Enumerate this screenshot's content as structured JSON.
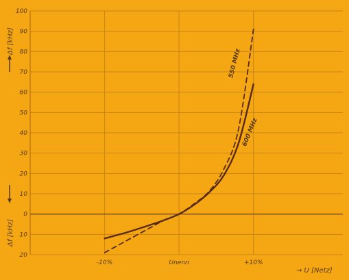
{
  "chart_data": {
    "type": "line",
    "x_ticks": [
      "-10%",
      "Unenn",
      "+10%"
    ],
    "x_values": [
      -10,
      0,
      10
    ],
    "xlabel": "→ U [Netz]",
    "ylabel_top": "Δf [kHz]",
    "ylabel_bottom": "Δf [kHz]",
    "y_ticks_top": [
      "100",
      "90",
      "80",
      "70",
      "60",
      "50",
      "40",
      "30",
      "20",
      "10",
      "0"
    ],
    "y_ticks_bottom": [
      "10",
      "20"
    ],
    "ylim": [
      -20,
      100
    ],
    "grid": true,
    "series": [
      {
        "name": "550 MHz",
        "style": "dashed",
        "color": "#5a2a1a",
        "points": [
          [
            -10,
            -19
          ],
          [
            -7,
            -13
          ],
          [
            -4,
            -7
          ],
          [
            -2,
            -3
          ],
          [
            0,
            0
          ],
          [
            2,
            5
          ],
          [
            4,
            11
          ],
          [
            6,
            22
          ],
          [
            8,
            42
          ],
          [
            10,
            91
          ]
        ]
      },
      {
        "name": "600 MHz",
        "style": "solid",
        "color": "#5a2a1a",
        "points": [
          [
            -10,
            -12
          ],
          [
            -7,
            -9
          ],
          [
            -4,
            -5.5
          ],
          [
            -2,
            -3
          ],
          [
            0,
            0
          ],
          [
            2,
            4.5
          ],
          [
            4,
            10.5
          ],
          [
            6,
            19
          ],
          [
            8,
            35
          ],
          [
            10,
            64
          ]
        ]
      }
    ]
  }
}
